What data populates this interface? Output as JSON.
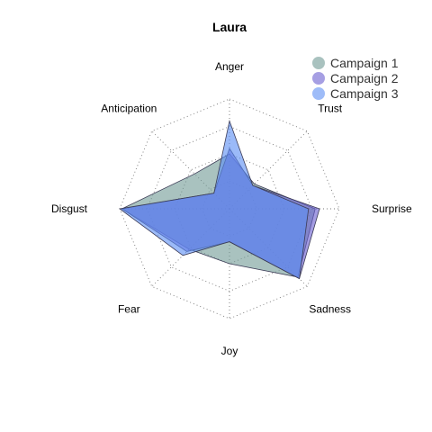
{
  "chart_data": {
    "type": "radar",
    "title": "Laura",
    "axes": [
      "Anger",
      "Trust",
      "Surprise",
      "Sadness",
      "Joy",
      "Fear",
      "Disgust",
      "Anticipation"
    ],
    "max": 1.0,
    "rings": 4,
    "grid": true,
    "legend_position": "top-right",
    "series": [
      {
        "name": "Campaign 1",
        "color": "#6f9a95",
        "values": [
          0.5,
          0.32,
          0.78,
          0.88,
          0.5,
          0.52,
          0.98,
          0.45
        ]
      },
      {
        "name": "Campaign 2",
        "color": "#6a5fd0",
        "values": [
          0.55,
          0.3,
          0.82,
          0.9,
          0.3,
          0.55,
          0.98,
          0.2
        ]
      },
      {
        "name": "Campaign 3",
        "color": "#5d8ff3",
        "values": [
          0.8,
          0.3,
          0.72,
          0.9,
          0.3,
          0.6,
          1.0,
          0.2
        ]
      }
    ]
  }
}
